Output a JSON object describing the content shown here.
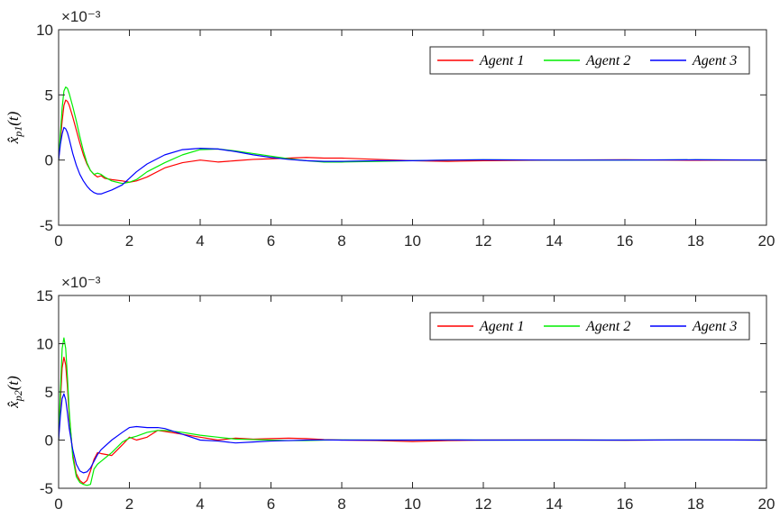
{
  "chart_data": [
    {
      "type": "line",
      "ylabel": "x̂_p1(t)",
      "exponent_label": "×10⁻³",
      "xlim": [
        0,
        20
      ],
      "ylim": [
        -5,
        10
      ],
      "xticks": [
        0,
        2,
        4,
        6,
        8,
        10,
        12,
        14,
        16,
        18,
        20
      ],
      "yticks": [
        -5,
        0,
        5,
        10
      ],
      "grid": false,
      "legend_position": "top-right",
      "legend_orientation": "horizontal",
      "series": [
        {
          "name": "Agent 1",
          "color": "#ff0000",
          "x": [
            0,
            0.05,
            0.1,
            0.15,
            0.2,
            0.25,
            0.3,
            0.4,
            0.5,
            0.6,
            0.7,
            0.8,
            0.9,
            1.0,
            1.1,
            1.2,
            1.3,
            1.5,
            1.8,
            2.0,
            2.2,
            2.5,
            3.0,
            3.5,
            4.0,
            4.5,
            5.0,
            5.5,
            6.0,
            6.5,
            7.0,
            7.5,
            8.0,
            9.0,
            10.0,
            11.0,
            12.0,
            14.0,
            16.0,
            18.0,
            20.0
          ],
          "y": [
            0,
            1.5,
            3.0,
            4.2,
            4.6,
            4.5,
            4.2,
            3.3,
            2.3,
            1.3,
            0.4,
            -0.3,
            -0.8,
            -1.1,
            -1.3,
            -1.2,
            -1.4,
            -1.5,
            -1.6,
            -1.7,
            -1.6,
            -1.3,
            -0.6,
            -0.2,
            0.0,
            -0.15,
            -0.05,
            0.05,
            0.1,
            0.15,
            0.2,
            0.15,
            0.15,
            0.05,
            -0.05,
            -0.1,
            -0.05,
            0.0,
            0.02,
            -0.02,
            0.0
          ]
        },
        {
          "name": "Agent 2",
          "color": "#00ee00",
          "x": [
            0,
            0.05,
            0.1,
            0.15,
            0.2,
            0.25,
            0.3,
            0.4,
            0.5,
            0.6,
            0.7,
            0.8,
            0.9,
            1.0,
            1.1,
            1.2,
            1.3,
            1.5,
            1.8,
            2.0,
            2.2,
            2.5,
            3.0,
            3.5,
            4.0,
            4.5,
            5.0,
            5.5,
            6.0,
            6.5,
            7.0,
            7.5,
            8.0,
            9.0,
            10.0,
            11.0,
            12.0,
            14.0,
            16.0,
            18.0,
            20.0
          ],
          "y": [
            0,
            2.0,
            4.0,
            5.3,
            5.6,
            5.5,
            5.1,
            4.1,
            3.0,
            1.8,
            0.7,
            -0.2,
            -0.8,
            -1.1,
            -1.0,
            -1.1,
            -1.3,
            -1.6,
            -1.8,
            -1.7,
            -1.5,
            -0.9,
            -0.2,
            0.4,
            0.8,
            0.85,
            0.7,
            0.5,
            0.3,
            0.1,
            -0.05,
            -0.15,
            -0.15,
            -0.1,
            -0.05,
            0.0,
            0.02,
            0.0,
            0.0,
            0.02,
            0.0
          ]
        },
        {
          "name": "Agent 3",
          "color": "#0000ff",
          "x": [
            0,
            0.05,
            0.1,
            0.15,
            0.2,
            0.25,
            0.3,
            0.4,
            0.5,
            0.6,
            0.7,
            0.8,
            0.9,
            1.0,
            1.1,
            1.2,
            1.3,
            1.5,
            1.8,
            2.0,
            2.2,
            2.5,
            3.0,
            3.5,
            4.0,
            4.5,
            5.0,
            5.5,
            6.0,
            6.5,
            7.0,
            7.5,
            8.0,
            9.0,
            10.0,
            11.0,
            12.0,
            14.0,
            16.0,
            18.0,
            20.0
          ],
          "y": [
            0,
            1.2,
            2.0,
            2.5,
            2.4,
            2.1,
            1.6,
            0.5,
            -0.4,
            -1.1,
            -1.6,
            -2.0,
            -2.3,
            -2.5,
            -2.6,
            -2.6,
            -2.5,
            -2.3,
            -1.9,
            -1.4,
            -0.9,
            -0.3,
            0.4,
            0.8,
            0.9,
            0.85,
            0.65,
            0.4,
            0.2,
            0.05,
            -0.05,
            -0.1,
            -0.1,
            -0.05,
            -0.05,
            0.0,
            0.02,
            0.0,
            0.0,
            0.02,
            0.0
          ]
        }
      ]
    },
    {
      "type": "line",
      "ylabel": "x̂_p2(t)",
      "exponent_label": "×10⁻³",
      "xlim": [
        0,
        20
      ],
      "ylim": [
        -5,
        15
      ],
      "xticks": [
        0,
        2,
        4,
        6,
        8,
        10,
        12,
        14,
        16,
        18,
        20
      ],
      "yticks": [
        -5,
        0,
        5,
        10,
        15
      ],
      "grid": false,
      "legend_position": "top-right",
      "legend_orientation": "horizontal",
      "series": [
        {
          "name": "Agent 1",
          "color": "#ff0000",
          "x": [
            0,
            0.05,
            0.1,
            0.15,
            0.2,
            0.25,
            0.3,
            0.4,
            0.5,
            0.6,
            0.7,
            0.8,
            0.9,
            1.0,
            1.1,
            1.2,
            1.5,
            1.8,
            2.0,
            2.2,
            2.5,
            2.8,
            3.0,
            3.5,
            4.0,
            4.5,
            5.0,
            5.5,
            6.0,
            6.5,
            7.0,
            7.5,
            8.0,
            9.0,
            10.0,
            11.0,
            12.0,
            14.0,
            16.0,
            18.0,
            20.0
          ],
          "y": [
            0,
            4.0,
            7.5,
            8.6,
            7.8,
            5.5,
            2.5,
            -1.5,
            -3.5,
            -4.2,
            -4.5,
            -4.2,
            -3.2,
            -2.0,
            -1.3,
            -1.4,
            -1.6,
            -0.5,
            0.3,
            0.0,
            0.3,
            1.0,
            0.9,
            0.6,
            0.3,
            0.0,
            0.2,
            0.1,
            0.15,
            0.2,
            0.15,
            0.05,
            0.0,
            -0.05,
            -0.15,
            -0.05,
            0.0,
            0.02,
            -0.02,
            0.02,
            0.0
          ]
        },
        {
          "name": "Agent 2",
          "color": "#00ee00",
          "x": [
            0,
            0.05,
            0.1,
            0.15,
            0.2,
            0.25,
            0.3,
            0.4,
            0.5,
            0.6,
            0.7,
            0.8,
            0.9,
            1.0,
            1.1,
            1.2,
            1.5,
            1.8,
            2.0,
            2.2,
            2.5,
            2.8,
            3.0,
            3.5,
            4.0,
            4.5,
            5.0,
            5.5,
            6.0,
            6.5,
            7.0,
            7.5,
            8.0,
            9.0,
            10.0,
            11.0,
            12.0,
            14.0,
            16.0,
            18.0,
            20.0
          ],
          "y": [
            0,
            5.0,
            9.5,
            10.6,
            9.5,
            6.5,
            3.0,
            -1.8,
            -3.8,
            -4.4,
            -4.6,
            -4.7,
            -4.6,
            -3.0,
            -2.5,
            -2.2,
            -1.3,
            -0.2,
            0.2,
            0.4,
            0.8,
            1.0,
            1.0,
            0.8,
            0.5,
            0.3,
            0.1,
            0.05,
            0.0,
            -0.05,
            -0.05,
            0.0,
            0.02,
            0.0,
            0.0,
            0.02,
            0.0,
            0.0,
            0.0,
            0.02,
            0.0
          ]
        },
        {
          "name": "Agent 3",
          "color": "#0000ff",
          "x": [
            0,
            0.05,
            0.1,
            0.15,
            0.2,
            0.25,
            0.3,
            0.4,
            0.5,
            0.6,
            0.7,
            0.8,
            0.9,
            1.0,
            1.1,
            1.2,
            1.5,
            1.8,
            2.0,
            2.2,
            2.5,
            2.8,
            3.0,
            3.5,
            4.0,
            4.5,
            5.0,
            5.5,
            6.0,
            6.5,
            7.0,
            7.5,
            8.0,
            9.0,
            10.0,
            11.0,
            12.0,
            14.0,
            16.0,
            18.0,
            20.0
          ],
          "y": [
            0,
            2.5,
            4.3,
            4.8,
            4.2,
            2.8,
            1.2,
            -1.0,
            -2.5,
            -3.2,
            -3.4,
            -3.3,
            -2.9,
            -2.2,
            -1.5,
            -1.0,
            0.0,
            0.8,
            1.3,
            1.4,
            1.3,
            1.3,
            1.2,
            0.6,
            0.0,
            -0.1,
            -0.3,
            -0.2,
            -0.1,
            -0.05,
            0.0,
            0.02,
            0.0,
            0.0,
            0.0,
            0.02,
            0.0,
            0.0,
            0.0,
            0.02,
            0.0
          ]
        }
      ]
    }
  ]
}
